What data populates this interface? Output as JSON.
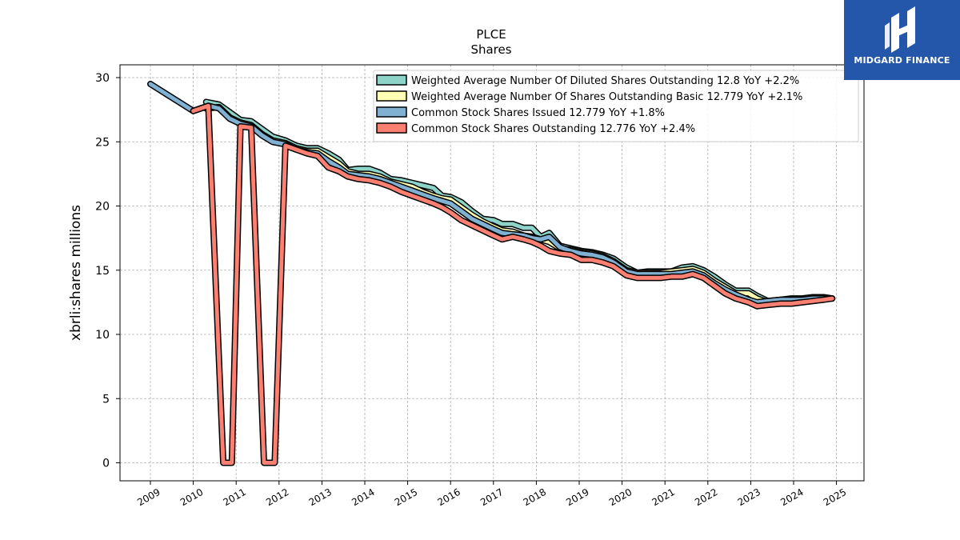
{
  "brand": {
    "name": "MIDGARD FINANCE",
    "color": "#2457a9"
  },
  "chart_data": {
    "type": "area",
    "title": "PLCE",
    "subtitle": "Shares",
    "xlabel": "",
    "ylabel": "xbrli:shares millions",
    "xlim": [
      2009,
      2025
    ],
    "ylim": [
      -1.5,
      31
    ],
    "x_ticks": [
      "2009",
      "2010",
      "2011",
      "2012",
      "2013",
      "2014",
      "2015",
      "2016",
      "2017",
      "2018",
      "2019",
      "2020",
      "2021",
      "2022",
      "2023",
      "2024",
      "2025"
    ],
    "y_ticks": [
      0,
      5,
      10,
      15,
      20,
      25,
      30
    ],
    "grid": true,
    "legend_position": "top-right",
    "series": [
      {
        "name": "Weighted Average Number Of Diluted Shares Outstanding",
        "legend_label": "Weighted Average Number Of Diluted Shares Outstanding  12.8 YoY +2.2%",
        "color": "#8dd3c7",
        "points": [
          [
            2010.3,
            28.1
          ],
          [
            2010.6,
            27.9
          ],
          [
            2010.85,
            27.3
          ],
          [
            2011.1,
            26.7
          ],
          [
            2011.35,
            26.6
          ],
          [
            2011.6,
            26.0
          ],
          [
            2011.85,
            25.4
          ],
          [
            2012.15,
            25.1
          ],
          [
            2012.4,
            24.7
          ],
          [
            2012.65,
            24.5
          ],
          [
            2012.9,
            24.5
          ],
          [
            2013.15,
            24.1
          ],
          [
            2013.4,
            23.6
          ],
          [
            2013.6,
            22.8
          ],
          [
            2013.85,
            22.9
          ],
          [
            2014.1,
            22.9
          ],
          [
            2014.35,
            22.6
          ],
          [
            2014.6,
            22.1
          ],
          [
            2014.85,
            22.0
          ],
          [
            2015.1,
            21.8
          ],
          [
            2015.35,
            21.6
          ],
          [
            2015.6,
            21.4
          ],
          [
            2015.8,
            20.8
          ],
          [
            2016.0,
            20.7
          ],
          [
            2016.25,
            20.3
          ],
          [
            2016.5,
            19.6
          ],
          [
            2016.75,
            19.0
          ],
          [
            2017.0,
            18.9
          ],
          [
            2017.2,
            18.6
          ],
          [
            2017.45,
            18.6
          ],
          [
            2017.7,
            18.3
          ],
          [
            2017.9,
            18.3
          ],
          [
            2018.1,
            17.6
          ],
          [
            2018.3,
            17.9
          ],
          [
            2018.55,
            16.9
          ],
          [
            2018.8,
            16.7
          ],
          [
            2019.05,
            16.5
          ],
          [
            2019.3,
            16.4
          ],
          [
            2019.55,
            16.2
          ],
          [
            2019.8,
            15.9
          ],
          [
            2020.1,
            15.2
          ],
          [
            2020.35,
            14.8
          ],
          [
            2020.6,
            14.9
          ],
          [
            2020.9,
            14.9
          ],
          [
            2021.15,
            14.9
          ],
          [
            2021.4,
            15.2
          ],
          [
            2021.65,
            15.3
          ],
          [
            2021.9,
            15.0
          ],
          [
            2022.15,
            14.5
          ],
          [
            2022.4,
            13.9
          ],
          [
            2022.65,
            13.4
          ],
          [
            2022.95,
            13.4
          ],
          [
            2023.15,
            13.0
          ],
          [
            2023.4,
            12.6
          ],
          [
            2023.7,
            12.7
          ],
          [
            2023.95,
            12.8
          ],
          [
            2024.2,
            12.8
          ],
          [
            2024.45,
            12.9
          ],
          [
            2024.7,
            12.9
          ],
          [
            2024.9,
            12.8
          ]
        ]
      },
      {
        "name": "Weighted Average Number Of Shares Outstanding Basic",
        "legend_label": "Weighted Average Number Of Shares Outstanding Basic  12.779 YoY +2.1%",
        "color": "#ffffb3",
        "points": [
          [
            2010.3,
            27.6
          ],
          [
            2010.6,
            27.7
          ],
          [
            2010.85,
            26.9
          ],
          [
            2011.1,
            26.5
          ],
          [
            2011.35,
            26.3
          ],
          [
            2011.6,
            25.6
          ],
          [
            2011.85,
            25.1
          ],
          [
            2012.15,
            24.9
          ],
          [
            2012.4,
            24.5
          ],
          [
            2012.65,
            24.3
          ],
          [
            2012.9,
            24.3
          ],
          [
            2013.15,
            23.8
          ],
          [
            2013.4,
            23.3
          ],
          [
            2013.6,
            22.7
          ],
          [
            2013.85,
            22.5
          ],
          [
            2014.1,
            22.5
          ],
          [
            2014.35,
            22.3
          ],
          [
            2014.6,
            21.9
          ],
          [
            2014.85,
            21.7
          ],
          [
            2015.1,
            21.5
          ],
          [
            2015.35,
            21.1
          ],
          [
            2015.6,
            20.8
          ],
          [
            2015.8,
            20.6
          ],
          [
            2016.0,
            20.5
          ],
          [
            2016.25,
            19.9
          ],
          [
            2016.5,
            19.3
          ],
          [
            2016.75,
            18.8
          ],
          [
            2017.0,
            18.4
          ],
          [
            2017.2,
            18.1
          ],
          [
            2017.45,
            18.0
          ],
          [
            2017.7,
            17.7
          ],
          [
            2017.9,
            17.6
          ],
          [
            2018.1,
            17.4
          ],
          [
            2018.3,
            17.2
          ],
          [
            2018.55,
            16.7
          ],
          [
            2018.8,
            16.6
          ],
          [
            2019.05,
            16.4
          ],
          [
            2019.3,
            16.3
          ],
          [
            2019.55,
            16.1
          ],
          [
            2019.8,
            15.7
          ],
          [
            2020.1,
            15.0
          ],
          [
            2020.35,
            14.8
          ],
          [
            2020.6,
            14.8
          ],
          [
            2020.9,
            14.8
          ],
          [
            2021.15,
            14.9
          ],
          [
            2021.4,
            15.0
          ],
          [
            2021.65,
            15.1
          ],
          [
            2021.9,
            14.8
          ],
          [
            2022.15,
            14.2
          ],
          [
            2022.4,
            13.7
          ],
          [
            2022.65,
            13.2
          ],
          [
            2022.95,
            13.2
          ],
          [
            2023.15,
            12.8
          ],
          [
            2023.4,
            12.5
          ],
          [
            2023.7,
            12.6
          ],
          [
            2023.95,
            12.7
          ],
          [
            2024.2,
            12.7
          ],
          [
            2024.45,
            12.8
          ],
          [
            2024.7,
            12.8
          ],
          [
            2024.9,
            12.8
          ]
        ]
      },
      {
        "name": "Common Stock Shares Issued",
        "legend_label": "Common Stock Shares Issued  12.779 YoY +1.8%",
        "color": "#80b1d3",
        "points": [
          [
            2009.0,
            29.5
          ],
          [
            2010.0,
            27.4
          ],
          [
            2010.35,
            27.8
          ],
          [
            2010.6,
            27.6
          ],
          [
            2010.85,
            26.8
          ],
          [
            2011.1,
            26.4
          ],
          [
            2011.35,
            26.2
          ],
          [
            2011.6,
            25.5
          ],
          [
            2011.85,
            25.0
          ],
          [
            2012.15,
            24.8
          ],
          [
            2012.4,
            24.4
          ],
          [
            2012.65,
            24.2
          ],
          [
            2012.9,
            24.1
          ],
          [
            2013.15,
            23.5
          ],
          [
            2013.4,
            23.0
          ],
          [
            2013.6,
            22.5
          ],
          [
            2013.85,
            22.4
          ],
          [
            2014.1,
            22.3
          ],
          [
            2014.35,
            22.1
          ],
          [
            2014.6,
            21.8
          ],
          [
            2014.85,
            21.5
          ],
          [
            2015.1,
            21.2
          ],
          [
            2015.35,
            20.9
          ],
          [
            2015.6,
            20.6
          ],
          [
            2015.8,
            20.4
          ],
          [
            2016.0,
            20.2
          ],
          [
            2016.25,
            19.6
          ],
          [
            2016.5,
            19.0
          ],
          [
            2016.75,
            18.6
          ],
          [
            2017.0,
            18.2
          ],
          [
            2017.2,
            17.9
          ],
          [
            2017.45,
            17.8
          ],
          [
            2017.7,
            17.7
          ],
          [
            2017.9,
            17.5
          ],
          [
            2018.1,
            17.4
          ],
          [
            2018.3,
            17.6
          ],
          [
            2018.55,
            16.8
          ],
          [
            2018.8,
            16.5
          ],
          [
            2019.05,
            16.3
          ],
          [
            2019.3,
            16.2
          ],
          [
            2019.55,
            16.0
          ],
          [
            2019.8,
            15.6
          ],
          [
            2020.1,
            14.9
          ],
          [
            2020.35,
            14.7
          ],
          [
            2020.6,
            14.7
          ],
          [
            2020.9,
            14.7
          ],
          [
            2021.15,
            14.7
          ],
          [
            2021.4,
            14.8
          ],
          [
            2021.65,
            14.9
          ],
          [
            2021.9,
            14.6
          ],
          [
            2022.15,
            14.0
          ],
          [
            2022.4,
            13.5
          ],
          [
            2022.65,
            13.1
          ],
          [
            2022.95,
            12.7
          ],
          [
            2023.15,
            12.5
          ],
          [
            2023.4,
            12.6
          ],
          [
            2023.7,
            12.7
          ],
          [
            2023.95,
            12.7
          ],
          [
            2024.2,
            12.7
          ],
          [
            2024.45,
            12.8
          ],
          [
            2024.7,
            12.8
          ],
          [
            2024.9,
            12.8
          ]
        ]
      },
      {
        "name": "Common Stock Shares Outstanding",
        "legend_label": "Common Stock Shares Outstanding  12.776 YoY +2.4%",
        "color": "#fb8072",
        "points": [
          [
            2010.0,
            27.4
          ],
          [
            2010.35,
            27.8
          ],
          [
            2010.7,
            0
          ],
          [
            2010.9,
            0
          ],
          [
            2011.1,
            26.2
          ],
          [
            2011.35,
            26.1
          ],
          [
            2011.65,
            0
          ],
          [
            2011.9,
            0
          ],
          [
            2012.15,
            24.7
          ],
          [
            2012.4,
            24.4
          ],
          [
            2012.65,
            24.1
          ],
          [
            2012.9,
            23.9
          ],
          [
            2013.15,
            23.0
          ],
          [
            2013.4,
            22.7
          ],
          [
            2013.6,
            22.3
          ],
          [
            2013.85,
            22.1
          ],
          [
            2014.1,
            22.0
          ],
          [
            2014.35,
            21.8
          ],
          [
            2014.6,
            21.5
          ],
          [
            2014.85,
            21.1
          ],
          [
            2015.1,
            20.8
          ],
          [
            2015.35,
            20.5
          ],
          [
            2015.6,
            20.2
          ],
          [
            2015.8,
            19.9
          ],
          [
            2016.0,
            19.5
          ],
          [
            2016.25,
            18.9
          ],
          [
            2016.5,
            18.5
          ],
          [
            2016.75,
            18.1
          ],
          [
            2017.0,
            17.7
          ],
          [
            2017.2,
            17.4
          ],
          [
            2017.45,
            17.6
          ],
          [
            2017.7,
            17.4
          ],
          [
            2017.9,
            17.2
          ],
          [
            2018.1,
            16.9
          ],
          [
            2018.3,
            16.5
          ],
          [
            2018.55,
            16.3
          ],
          [
            2018.8,
            16.2
          ],
          [
            2019.05,
            15.8
          ],
          [
            2019.3,
            15.8
          ],
          [
            2019.55,
            15.6
          ],
          [
            2019.8,
            15.3
          ],
          [
            2020.1,
            14.6
          ],
          [
            2020.35,
            14.4
          ],
          [
            2020.6,
            14.4
          ],
          [
            2020.9,
            14.4
          ],
          [
            2021.15,
            14.5
          ],
          [
            2021.4,
            14.5
          ],
          [
            2021.65,
            14.7
          ],
          [
            2021.9,
            14.4
          ],
          [
            2022.15,
            13.8
          ],
          [
            2022.4,
            13.2
          ],
          [
            2022.65,
            12.8
          ],
          [
            2022.95,
            12.5
          ],
          [
            2023.15,
            12.2
          ],
          [
            2023.4,
            12.3
          ],
          [
            2023.7,
            12.4
          ],
          [
            2023.95,
            12.4
          ],
          [
            2024.2,
            12.5
          ],
          [
            2024.45,
            12.6
          ],
          [
            2024.7,
            12.7
          ],
          [
            2024.9,
            12.8
          ]
        ]
      }
    ]
  }
}
